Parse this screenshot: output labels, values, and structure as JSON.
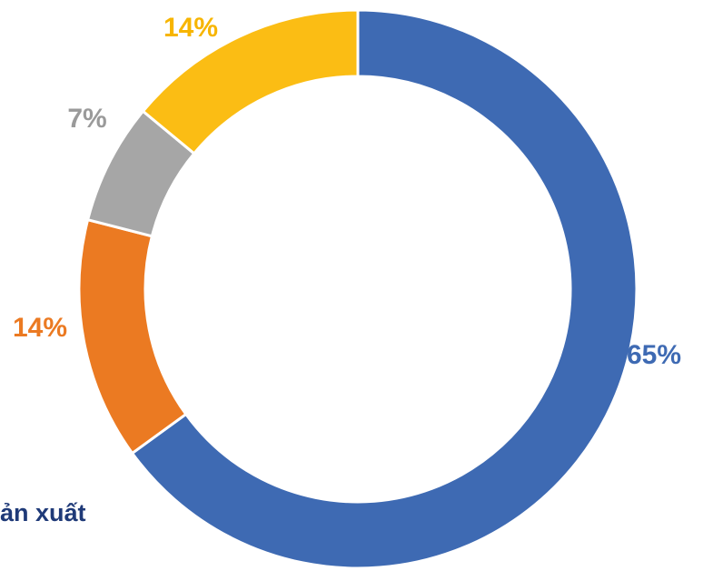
{
  "chart_data": {
    "type": "donut",
    "values": [
      65,
      14,
      7,
      14
    ],
    "value_labels": [
      "65%",
      "14%",
      "7%",
      "14%"
    ],
    "colors": [
      "#3e6ab3",
      "#eb7a22",
      "#a6a6a6",
      "#fbbd14"
    ],
    "annotations": [
      "ản xuất"
    ]
  }
}
